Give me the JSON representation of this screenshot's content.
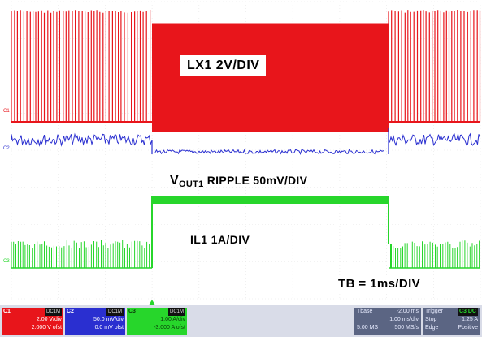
{
  "annotations": {
    "lx1": "LX1 2V/DIV",
    "vout_prefix": "V",
    "vout_sub": "OUT1",
    "vout_rest": " RIPPLE  50mV/DIV",
    "il1": "IL1 1A/DIV",
    "tb": "TB = 1ms/DIV"
  },
  "channels": {
    "c1": {
      "marker": "C1",
      "name": "C1",
      "badge": "DC1M",
      "vdiv": "2.00 V/div",
      "ofst": "2.000 V ofst",
      "color": "#e8151b"
    },
    "c2": {
      "marker": "C2",
      "name": "C2",
      "badge": "DC1M",
      "vdiv": "50.0 mV/div",
      "ofst": "0.0 mV ofst",
      "color": "#2a2fd0"
    },
    "c3": {
      "marker": "C3",
      "name": "C3",
      "badge": "DC1M",
      "vdiv": "1.00 A/div",
      "ofst": "-3.000 A ofst",
      "color": "#27d62b"
    }
  },
  "timebase": {
    "label": "Tbase",
    "offset": "-2.00 ms",
    "div": "1.00 ms/div",
    "samples": "5.00 MS",
    "rate": "500 MS/s"
  },
  "trigger": {
    "label": "Trigger",
    "badge": "C3 DC",
    "mode": "Stop",
    "level": "1.25 A",
    "type": "Edge",
    "slope": "Positive"
  }
}
